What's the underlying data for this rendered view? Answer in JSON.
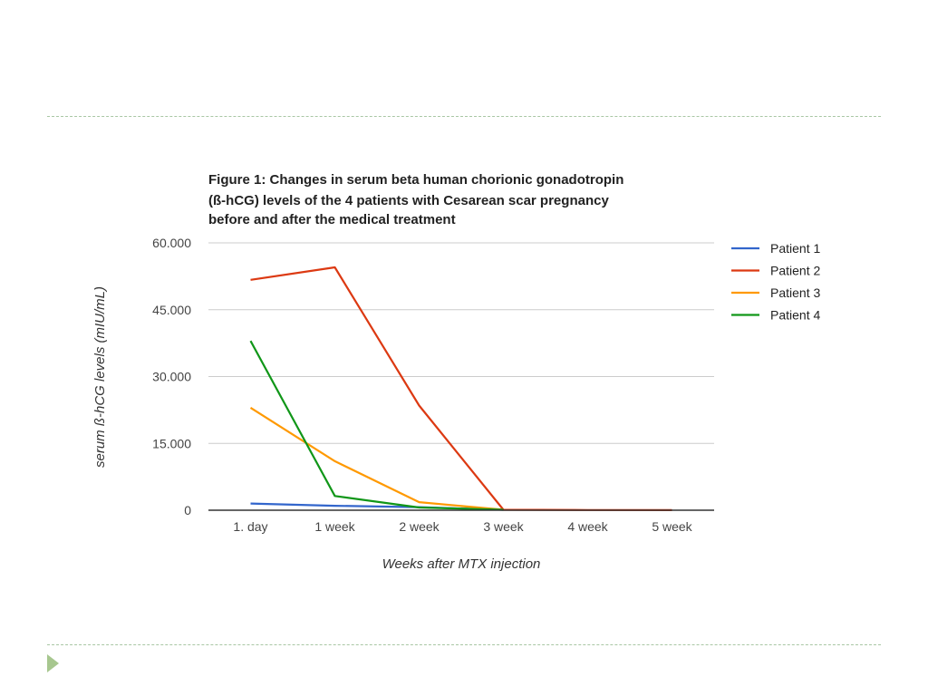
{
  "chart_data": {
    "type": "line",
    "title_lines": [
      "Figure 1: Changes in serum beta human chorionic gonadotropin",
      "(ß-hCG) levels of the 4 patients with Cesarean scar pregnancy",
      "before and after the medical treatment"
    ],
    "xlabel": "Weeks after MTX injection",
    "ylabel": "serum ß-hCG levels (mIU/mL)",
    "categories": [
      "1. day",
      "1 week",
      "2 week",
      "3 week",
      "4 week",
      "5 week"
    ],
    "ylim": [
      0,
      60000
    ],
    "yticks": [
      0,
      15000,
      30000,
      45000,
      60000
    ],
    "ytick_labels": [
      "0",
      "15.000",
      "30.000",
      "45.000",
      "60.000"
    ],
    "grid": true,
    "legend_position": "right",
    "series": [
      {
        "name": "Patient 1",
        "color": "#3366cc",
        "values": [
          1500,
          1000,
          700,
          100,
          null,
          null
        ]
      },
      {
        "name": "Patient 2",
        "color": "#dc3912",
        "values": [
          51700,
          54500,
          23500,
          100,
          50,
          20
        ]
      },
      {
        "name": "Patient 3",
        "color": "#ff9900",
        "values": [
          23000,
          11000,
          1800,
          100,
          null,
          null
        ]
      },
      {
        "name": "Patient 4",
        "color": "#109618",
        "values": [
          38000,
          3200,
          600,
          100,
          null,
          null
        ]
      }
    ]
  }
}
